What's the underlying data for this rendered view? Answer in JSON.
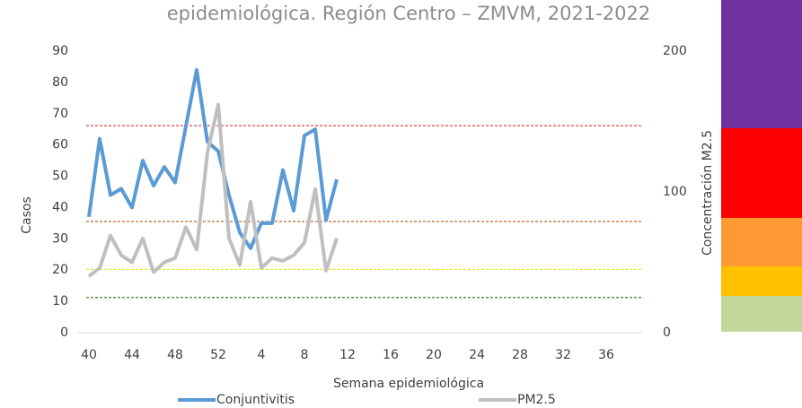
{
  "chart_data": {
    "type": "line",
    "title": "epidemiológica. Región Centro – ZMVM, 2021-2022",
    "xlabel": "Semana epidemiológica",
    "ylabel": "Casos",
    "y2label": "Concentración M2.5",
    "categories": [
      "40",
      null,
      null,
      null,
      "44",
      null,
      null,
      null,
      "48",
      null,
      null,
      null,
      "52",
      null,
      null,
      null,
      "4",
      null,
      null,
      null,
      "8",
      null,
      null,
      null,
      "12",
      null,
      null,
      null,
      "16",
      null,
      null,
      null,
      "20",
      null,
      null,
      null,
      "24",
      null,
      null,
      null,
      "28",
      null,
      null,
      null,
      "32",
      null,
      null,
      null,
      "36",
      null,
      null,
      null
    ],
    "series": [
      {
        "name": "Conjuntivitis",
        "color": "#5b9bd5",
        "axis": "y",
        "values": [
          37,
          62,
          44,
          46,
          40,
          55,
          47,
          53,
          48,
          66,
          84,
          61,
          58,
          44,
          32,
          27,
          35,
          35,
          52,
          39,
          63,
          65,
          36,
          49,
          null,
          null,
          null,
          null,
          null,
          null,
          null,
          null,
          null,
          null,
          null,
          null,
          null,
          null,
          null,
          null,
          null,
          null,
          null,
          null,
          null,
          null,
          null,
          null,
          null,
          null,
          null,
          null
        ]
      },
      {
        "name": "PM2.5",
        "color": "#bfbfbf",
        "axis": "y2",
        "values": [
          40,
          46,
          69,
          55,
          50,
          67,
          43,
          50,
          53,
          75,
          59,
          128,
          162,
          67,
          48,
          93,
          46,
          53,
          51,
          55,
          64,
          102,
          44,
          67,
          null,
          null,
          null,
          null,
          null,
          null,
          null,
          null,
          null,
          null,
          null,
          null,
          null,
          null,
          null,
          null,
          null,
          null,
          null,
          null,
          null,
          null,
          null,
          null,
          null,
          null,
          null,
          null
        ]
      }
    ],
    "ylim": [
      0,
      90
    ],
    "yticks": [
      0,
      10,
      20,
      30,
      40,
      50,
      60,
      70,
      80,
      90
    ],
    "y2lim": [
      0,
      200
    ],
    "y2ticks": [
      0,
      100,
      200
    ],
    "reference_lines": [
      {
        "value": 147,
        "color": "#e03030",
        "axis": "y2"
      },
      {
        "value": 79,
        "color": "#c0662a",
        "axis": "y2"
      },
      {
        "value": 45,
        "color": "#e8e820",
        "axis": "y2"
      },
      {
        "value": 25,
        "color": "#3f7f2f",
        "axis": "y2"
      }
    ]
  }
}
